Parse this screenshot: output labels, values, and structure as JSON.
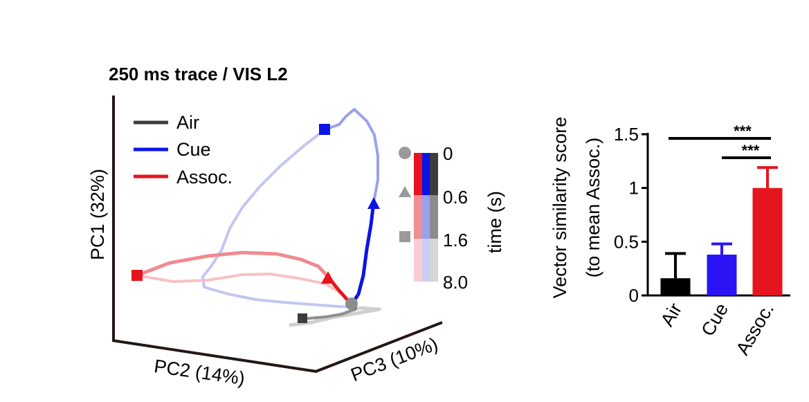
{
  "chart_data": [
    {
      "type": "line",
      "subtype": "3d-trajectory",
      "title": "250 ms trace / VIS L2",
      "axes": {
        "pc1": "PC1 (32%)",
        "pc2": "PC2 (14%)",
        "pc3": "PC3 (10%)"
      },
      "legend": [
        {
          "name": "Air",
          "color": "#3c3c3c"
        },
        {
          "name": "Cue",
          "color": "#0a14e6"
        },
        {
          "name": "Assoc.",
          "color": "#e6141e"
        }
      ],
      "time_legend": {
        "ticks": [
          "0",
          "0.6",
          "1.6",
          "8.0"
        ],
        "label": "time (s)",
        "markers": [
          {
            "shape": "circle",
            "time": "0"
          },
          {
            "shape": "triangle",
            "time": "0.6"
          },
          {
            "shape": "square",
            "time": "1.6"
          }
        ]
      }
    },
    {
      "type": "bar",
      "ylabel": "Vector similarity score",
      "ylabel2": "(to mean Assoc.)",
      "categories": [
        "Air",
        "Cue",
        "Assoc."
      ],
      "values": [
        0.16,
        0.38,
        1.0
      ],
      "errors": [
        0.23,
        0.1,
        0.19
      ],
      "colors": [
        "#000000",
        "#2a14f5",
        "#e6141e"
      ],
      "ylim": [
        0,
        1.5
      ],
      "yticks": [
        "0",
        "0.5",
        "1",
        "1.5"
      ],
      "significance": [
        {
          "from": "Air",
          "to": "Assoc.",
          "label": "***"
        },
        {
          "from": "Cue",
          "to": "Assoc.",
          "label": "***"
        }
      ]
    }
  ]
}
